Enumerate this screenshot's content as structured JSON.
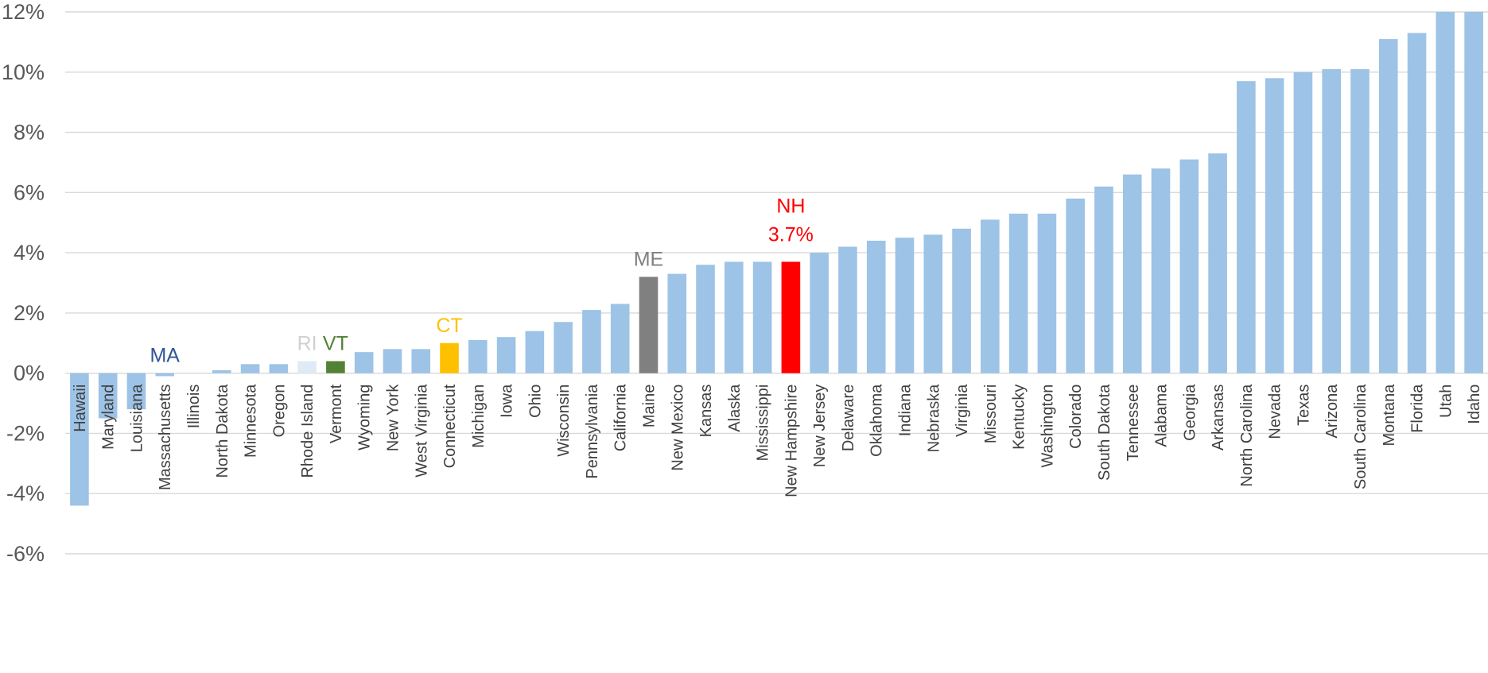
{
  "chart_data": {
    "type": "bar",
    "ylim": [
      -6,
      12
    ],
    "ytick_values": [
      -6,
      -4,
      -2,
      0,
      2,
      4,
      6,
      8,
      10,
      12
    ],
    "ytick_labels": [
      "-6%",
      "-4%",
      "-2%",
      "0%",
      "2%",
      "4%",
      "6%",
      "8%",
      "10%",
      "12%"
    ],
    "grid": true,
    "default_color": "#9dc3e6",
    "categories": [
      "Hawaii",
      "Maryland",
      "Louisiana",
      "Massachusetts",
      "Illinois",
      "North Dakota",
      "Minnesota",
      "Oregon",
      "Rhode Island",
      "Vermont",
      "Wyoming",
      "New York",
      "West Virginia",
      "Connecticut",
      "Michigan",
      "Iowa",
      "Ohio",
      "Wisconsin",
      "Pennsylvania",
      "California",
      "Maine",
      "New Mexico",
      "Kansas",
      "Alaska",
      "Mississippi",
      "New Hampshire",
      "New Jersey",
      "Delaware",
      "Oklahoma",
      "Indiana",
      "Nebraska",
      "Virginia",
      "Missouri",
      "Kentucky",
      "Washington",
      "Colorado",
      "South Dakota",
      "Tennessee",
      "Alabama",
      "Georgia",
      "Arkansas",
      "North Carolina",
      "Nevada",
      "Texas",
      "Arizona",
      "South Carolina",
      "Montana",
      "Florida",
      "Utah",
      "Idaho"
    ],
    "values": [
      -4.4,
      -1.5,
      -1.2,
      -0.1,
      0.0,
      0.1,
      0.3,
      0.3,
      0.4,
      0.4,
      0.7,
      0.8,
      0.8,
      1.0,
      1.1,
      1.2,
      1.4,
      1.7,
      2.1,
      2.3,
      3.2,
      3.3,
      3.6,
      3.7,
      3.7,
      3.7,
      4.0,
      4.2,
      4.4,
      4.5,
      4.6,
      4.8,
      5.1,
      5.3,
      5.3,
      5.8,
      6.2,
      6.6,
      6.8,
      7.1,
      7.3,
      9.7,
      9.8,
      10.0,
      10.1,
      10.1,
      11.1,
      11.3,
      12.6,
      12.9
    ],
    "highlights": [
      {
        "category": "Massachusetts",
        "color": "#9dc3e6",
        "label": "MA",
        "label_color": "#2f5597"
      },
      {
        "category": "Rhode Island",
        "color": "#deebf7",
        "label": "RI",
        "label_color": "#d0d0d0"
      },
      {
        "category": "Vermont",
        "color": "#548235",
        "label": "VT",
        "label_color": "#548235"
      },
      {
        "category": "Connecticut",
        "color": "#ffc000",
        "label": "CT",
        "label_color": "#ffc000"
      },
      {
        "category": "Maine",
        "color": "#808080",
        "label": "ME",
        "label_color": "#808080"
      },
      {
        "category": "New Hampshire",
        "color": "#ff0000",
        "label": "NH",
        "sublabel": "3.7%",
        "label_color": "#ff0000"
      }
    ]
  }
}
